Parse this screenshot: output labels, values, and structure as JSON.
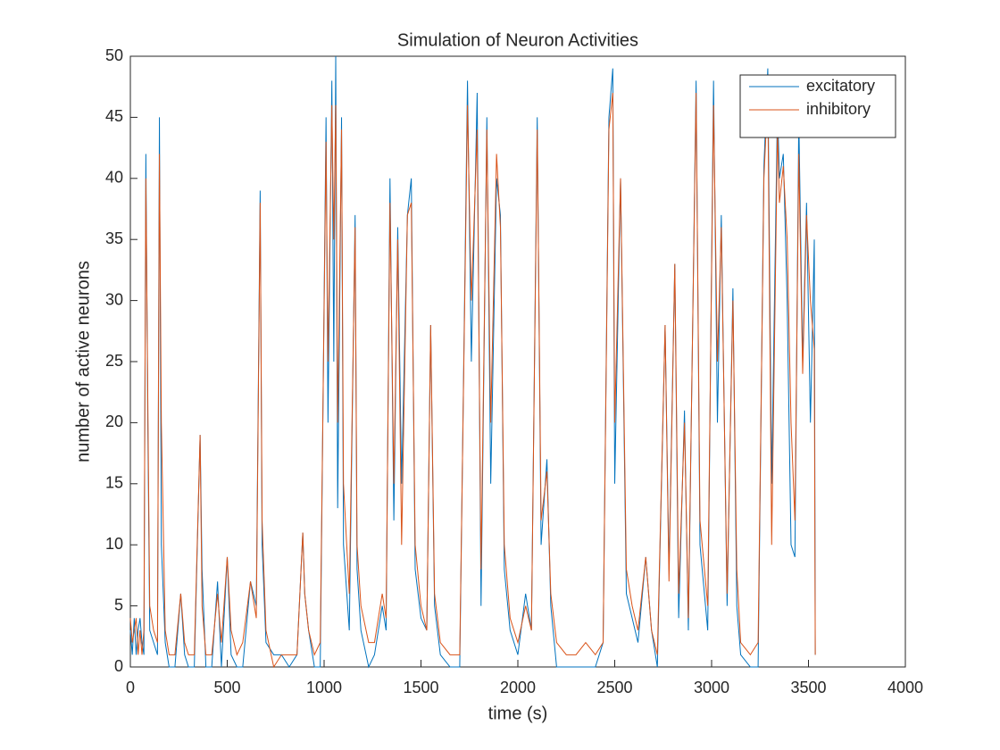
{
  "chart_data": {
    "type": "line",
    "title": "Simulation of Neuron Activities",
    "x_label": "time (s)",
    "y_label": "number of active neurons",
    "x": [
      0,
      10,
      20,
      30,
      40,
      50,
      60,
      70,
      80,
      90,
      100,
      120,
      140,
      150,
      160,
      180,
      200,
      230,
      260,
      280,
      300,
      330,
      360,
      370,
      390,
      420,
      450,
      470,
      500,
      520,
      550,
      580,
      620,
      650,
      670,
      680,
      700,
      740,
      780,
      820,
      860,
      890,
      900,
      920,
      950,
      980,
      1010,
      1020,
      1040,
      1050,
      1060,
      1070,
      1090,
      1100,
      1130,
      1160,
      1170,
      1190,
      1230,
      1260,
      1300,
      1320,
      1340,
      1360,
      1380,
      1400,
      1430,
      1450,
      1470,
      1500,
      1530,
      1550,
      1570,
      1600,
      1650,
      1700,
      1740,
      1760,
      1790,
      1810,
      1840,
      1860,
      1890,
      1910,
      1930,
      1960,
      2000,
      2040,
      2070,
      2100,
      2120,
      2150,
      2170,
      2200,
      2250,
      2300,
      2350,
      2400,
      2440,
      2470,
      2490,
      2500,
      2530,
      2560,
      2590,
      2620,
      2660,
      2690,
      2720,
      2760,
      2780,
      2810,
      2830,
      2860,
      2880,
      2920,
      2940,
      2980,
      3010,
      3030,
      3050,
      3080,
      3110,
      3130,
      3150,
      3200,
      3240,
      3270,
      3290,
      3310,
      3340,
      3350,
      3370,
      3390,
      3410,
      3430,
      3450,
      3470,
      3490,
      3510,
      3530,
      3535
    ],
    "series": [
      {
        "name": "excitatory",
        "color": "#0072bd",
        "values": [
          3,
          1,
          4,
          1,
          3,
          4,
          2,
          1,
          42,
          20,
          3,
          2,
          1,
          45,
          10,
          2,
          0,
          0,
          6,
          1,
          0,
          0,
          19,
          8,
          0,
          0,
          7,
          0,
          9,
          1,
          0,
          0,
          7,
          5,
          39,
          10,
          2,
          1,
          1,
          0,
          1,
          11,
          6,
          3,
          0,
          0,
          45,
          20,
          48,
          25,
          50,
          13,
          45,
          10,
          3,
          37,
          8,
          3,
          0,
          1,
          5,
          3,
          40,
          12,
          36,
          15,
          37,
          40,
          8,
          4,
          3,
          28,
          5,
          1,
          0,
          0,
          48,
          25,
          47,
          5,
          45,
          15,
          40,
          37,
          8,
          3,
          1,
          6,
          3,
          45,
          10,
          17,
          5,
          0,
          0,
          0,
          0,
          0,
          2,
          45,
          49,
          15,
          40,
          6,
          4,
          2,
          9,
          3,
          0,
          28,
          8,
          33,
          4,
          21,
          3,
          48,
          10,
          3,
          48,
          20,
          37,
          5,
          31,
          5,
          1,
          0,
          0,
          41,
          49,
          15,
          46,
          40,
          42,
          30,
          10,
          9,
          45,
          25,
          38,
          20,
          35,
          1
        ]
      },
      {
        "name": "inhibitory",
        "color": "#d95319",
        "values": [
          4,
          2,
          3,
          4,
          1,
          3,
          1,
          3,
          40,
          22,
          5,
          3,
          2,
          42,
          20,
          3,
          1,
          1,
          6,
          2,
          1,
          1,
          19,
          5,
          1,
          1,
          6,
          2,
          9,
          3,
          1,
          2,
          7,
          4,
          38,
          12,
          3,
          0,
          1,
          1,
          1,
          11,
          6,
          3,
          1,
          2,
          43,
          25,
          46,
          35,
          46,
          20,
          44,
          15,
          6,
          36,
          10,
          5,
          2,
          2,
          6,
          4,
          38,
          15,
          35,
          10,
          37,
          38,
          10,
          5,
          3,
          28,
          6,
          2,
          1,
          1,
          46,
          30,
          44,
          8,
          44,
          20,
          42,
          36,
          10,
          4,
          2,
          5,
          3,
          44,
          12,
          16,
          6,
          2,
          1,
          1,
          2,
          1,
          2,
          44,
          47,
          20,
          40,
          8,
          5,
          3,
          9,
          3,
          1,
          28,
          7,
          33,
          6,
          20,
          4,
          47,
          12,
          5,
          46,
          25,
          36,
          6,
          30,
          8,
          2,
          1,
          2,
          40,
          47,
          10,
          44,
          38,
          41,
          35,
          20,
          12,
          42,
          24,
          37,
          30,
          26,
          1
        ]
      }
    ],
    "xlim": [
      0,
      4000
    ],
    "xticks": [
      0,
      500,
      1000,
      1500,
      2000,
      2500,
      3000,
      3500,
      4000
    ],
    "ylim": [
      0,
      50
    ],
    "yticks": [
      0,
      5,
      10,
      15,
      20,
      25,
      30,
      35,
      40,
      45,
      50
    ],
    "legend": "upper right"
  }
}
